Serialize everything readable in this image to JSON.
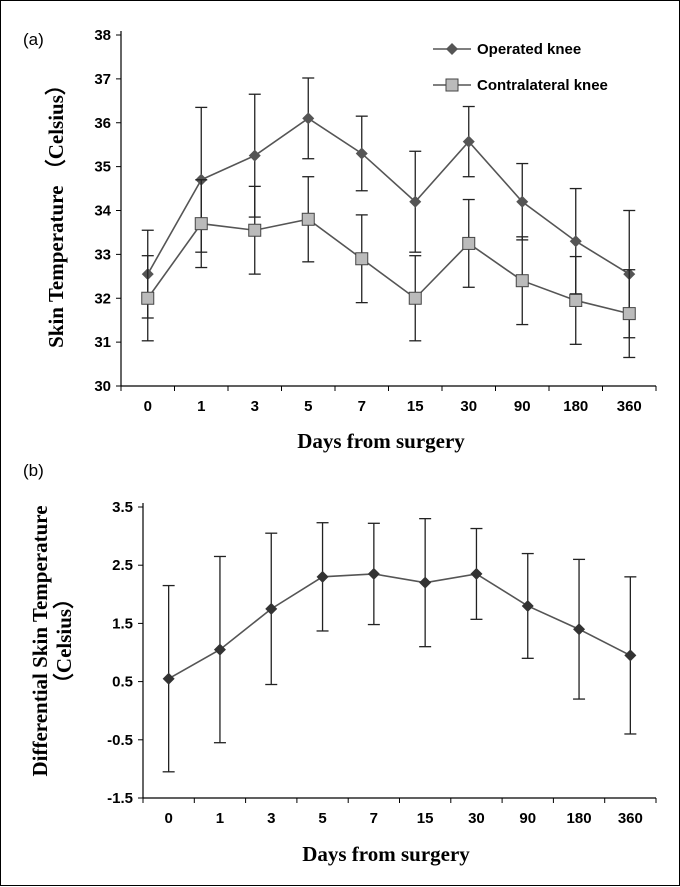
{
  "chart_data": [
    {
      "type": "line",
      "panel_label": "(a)",
      "categories": [
        "0",
        "1",
        "3",
        "5",
        "7",
        "15",
        "30",
        "90",
        "180",
        "360"
      ],
      "xlabel": "Days from surgery",
      "ylabel": "Skin Temperature （Celsius）",
      "ylim": [
        30,
        38
      ],
      "yticks": [
        "30",
        "31",
        "32",
        "33",
        "34",
        "35",
        "36",
        "37",
        "38"
      ],
      "grid": false,
      "legend_position": "top-right",
      "series": [
        {
          "name": "Operated knee",
          "marker": "diamond",
          "color": "#555555",
          "values": [
            32.55,
            34.7,
            35.25,
            36.1,
            35.3,
            34.2,
            35.57,
            34.2,
            33.3,
            32.55
          ],
          "error": [
            1.0,
            1.65,
            1.4,
            0.92,
            0.85,
            1.15,
            0.8,
            0.87,
            1.2,
            1.45
          ]
        },
        {
          "name": "Contralateral knee",
          "marker": "square",
          "color": "#bbbbbb",
          "values": [
            32.0,
            33.7,
            33.55,
            33.8,
            32.9,
            32.0,
            33.25,
            32.4,
            31.95,
            31.65
          ],
          "error": [
            0.97,
            1.0,
            1.0,
            0.97,
            1.0,
            0.97,
            1.0,
            1.0,
            1.0,
            1.0
          ]
        }
      ]
    },
    {
      "type": "line",
      "panel_label": "(b)",
      "categories": [
        "0",
        "1",
        "3",
        "5",
        "7",
        "15",
        "30",
        "90",
        "180",
        "360"
      ],
      "xlabel": "Days from surgery",
      "ylabel_lines": [
        "Differential  Skin Temperature",
        "（Celsius）"
      ],
      "ylim": [
        -1.5,
        3.5
      ],
      "yticks": [
        "-1.5",
        "-0.5",
        "0.5",
        "1.5",
        "2.5",
        "3.5"
      ],
      "grid": false,
      "series": [
        {
          "marker": "diamond",
          "color": "#333333",
          "values": [
            0.55,
            1.05,
            1.75,
            2.3,
            2.35,
            2.2,
            2.35,
            1.8,
            1.4,
            0.95
          ],
          "error": [
            1.6,
            1.6,
            1.3,
            0.93,
            0.87,
            1.1,
            0.78,
            0.9,
            1.2,
            1.35
          ]
        }
      ]
    }
  ]
}
